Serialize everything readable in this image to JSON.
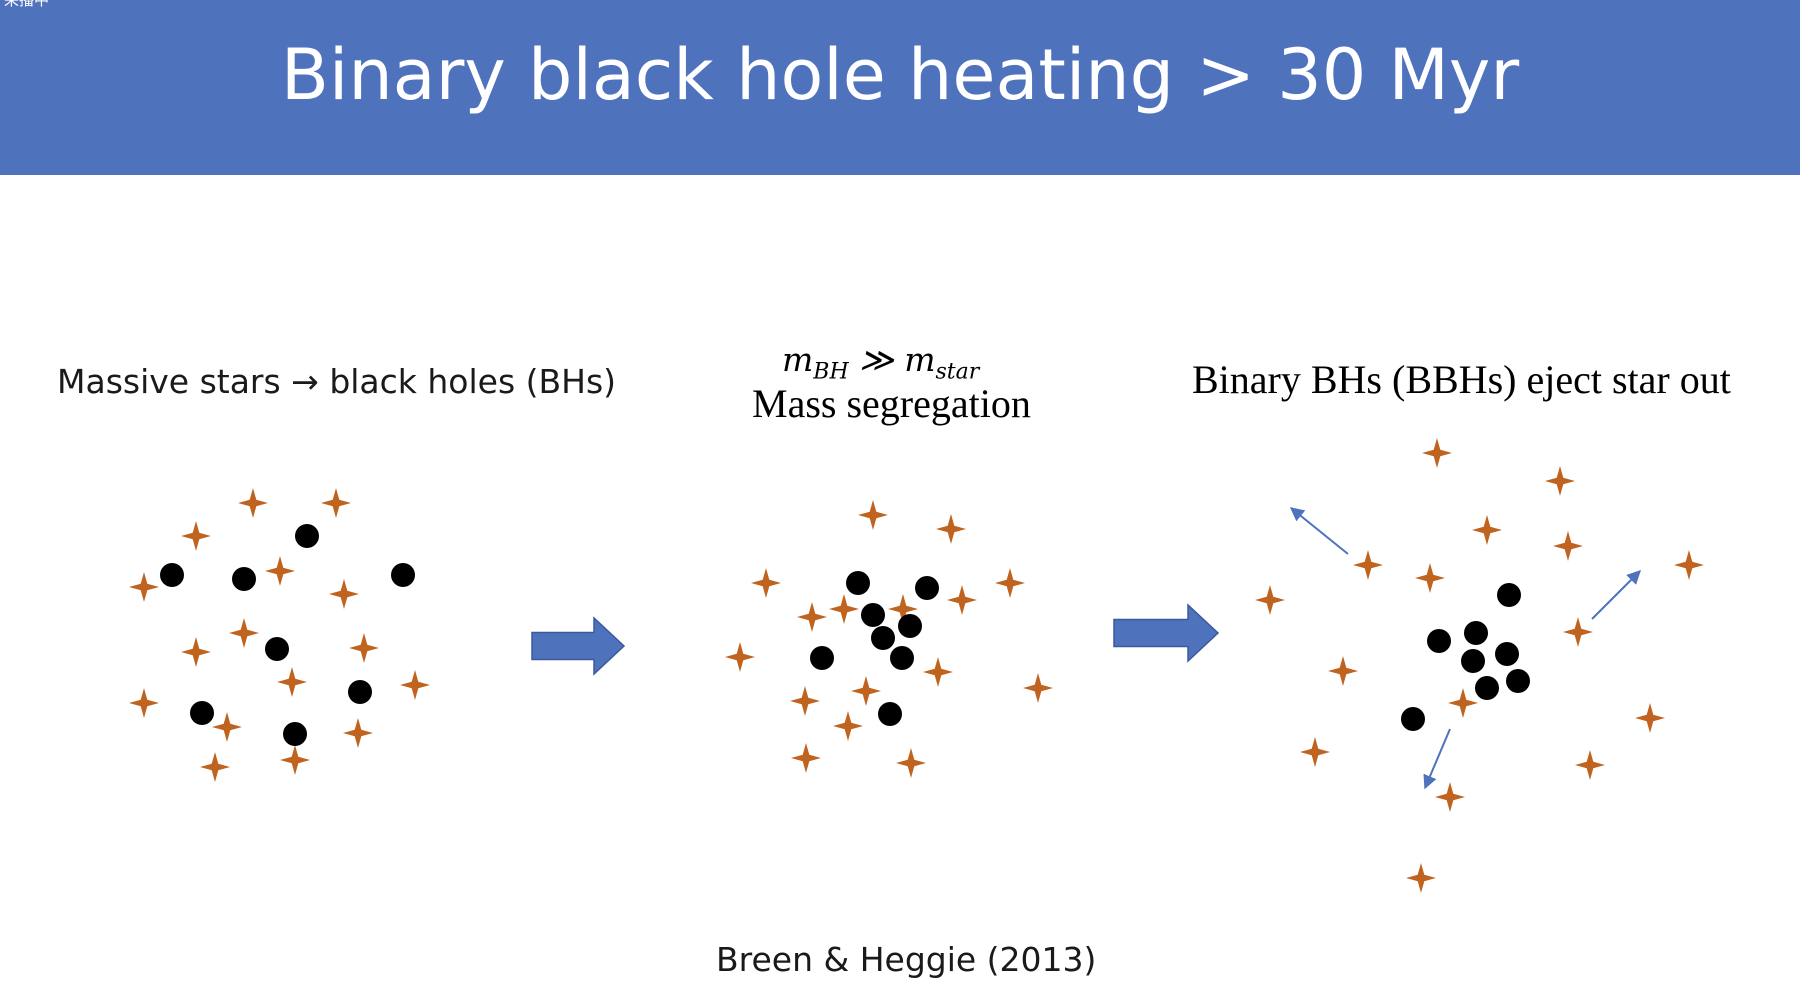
{
  "header": {
    "corner_text": "采播中",
    "title": "Binary black hole heating > 30 Myr"
  },
  "panels": {
    "left_label": "Massive stars → black holes (BHs)",
    "middle_formula": {
      "m1": "m",
      "m1_sub": "BH",
      "rel": " ≫ ",
      "m2": "m",
      "m2_sub": "star"
    },
    "middle_label": "Mass segregation",
    "right_label": "Binary BHs (BBHs) eject star out"
  },
  "citation": "Breen & Heggie (2013)",
  "colors": {
    "header_bg": "#4f72bd",
    "star": "#c0631f",
    "black_hole": "#000000",
    "arrow": "#4f72bd"
  }
}
